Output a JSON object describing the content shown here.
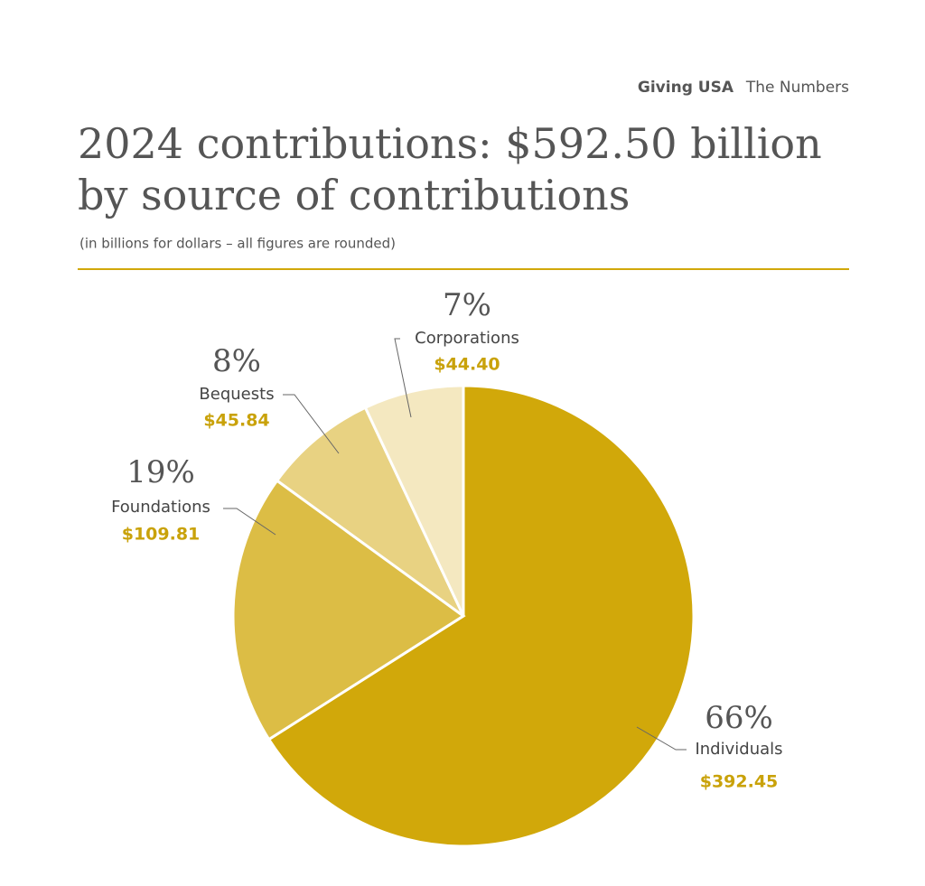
{
  "chart_data": {
    "type": "pie",
    "header": {
      "brand": "Giving USA",
      "section": "The Numbers"
    },
    "title": [
      "2024 contributions: $592.50 billion",
      "by source of contributions"
    ],
    "subtitle": "(in billions for dollars – all figures are rounded)",
    "categories": [
      "Individuals",
      "Foundations",
      "Bequests",
      "Corporations"
    ],
    "values": [
      66,
      19,
      8,
      7
    ],
    "value_labels": [
      "66%",
      "19%",
      "8%",
      "7%"
    ],
    "amounts": [
      392.45,
      109.81,
      45.84,
      44.4
    ],
    "amount_labels": [
      "$392.45",
      "$109.81",
      "$45.84",
      "$44.40"
    ],
    "colors": [
      "#d1a80a",
      "#dcbd45",
      "#e8d282",
      "#f4e8c0"
    ]
  }
}
